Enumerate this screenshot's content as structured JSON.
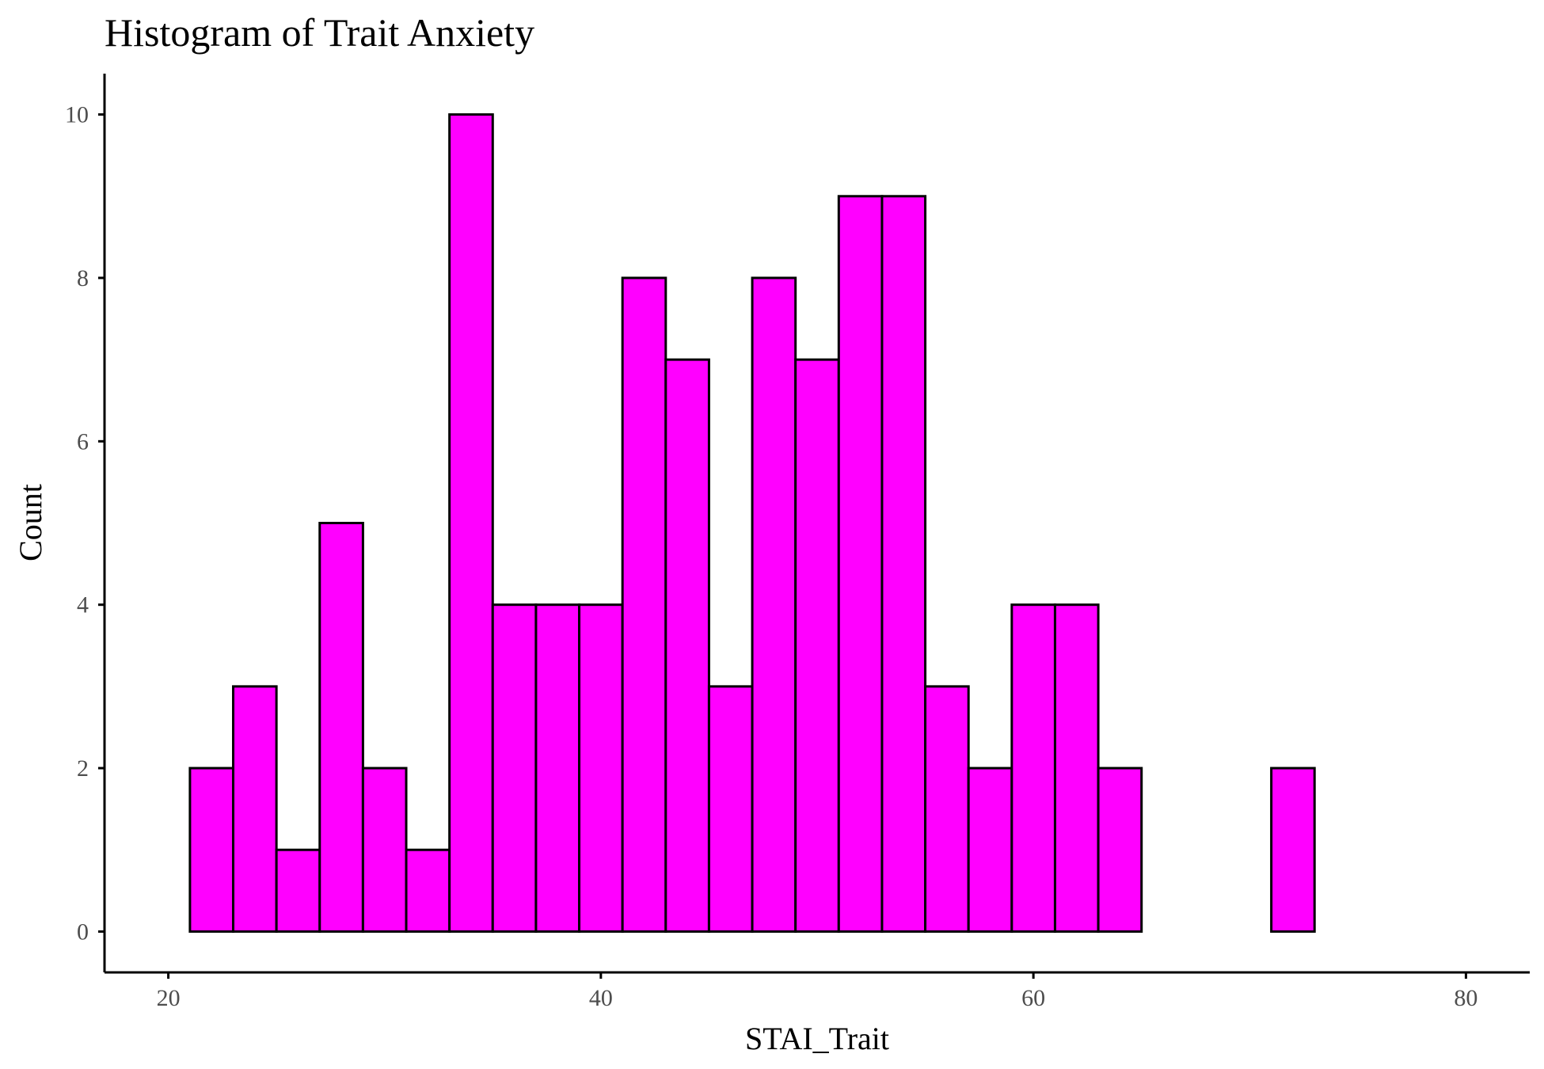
{
  "chart_data": {
    "type": "histogram",
    "title": "Histogram of Trait Anxiety",
    "xlabel": "STAI_Trait",
    "ylabel": "Count",
    "xlim": [
      17.05,
      82.95
    ],
    "ylim": [
      -0.5,
      10.5
    ],
    "xticks": [
      20,
      40,
      60,
      80
    ],
    "yticks": [
      0,
      2,
      4,
      6,
      8,
      10
    ],
    "xtick_labels": [
      "20",
      "40",
      "60",
      "80"
    ],
    "ytick_labels": [
      "0",
      "2",
      "4",
      "6",
      "8",
      "10"
    ],
    "bin_width": 2,
    "bin_start": 21,
    "counts": [
      2,
      3,
      1,
      5,
      2,
      1,
      10,
      4,
      4,
      4,
      8,
      7,
      3,
      8,
      7,
      9,
      9,
      3,
      2,
      4,
      4,
      2,
      0,
      0,
      0,
      2,
      0,
      0,
      0
    ],
    "bar_fill": "#ff00ff",
    "bar_stroke": "#000000",
    "grid": false
  }
}
